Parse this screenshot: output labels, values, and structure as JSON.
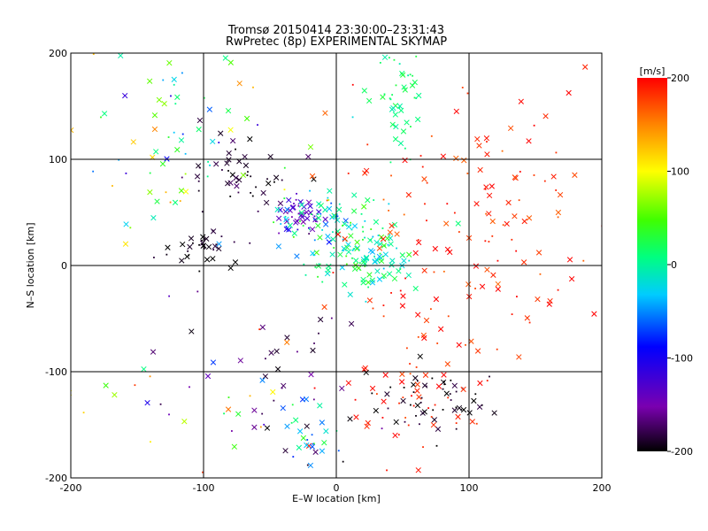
{
  "titles": {
    "line1": "Tromsø 20150414 23:30:00–23:31:43",
    "line2": "RwPretec (8p) EXPERIMENTAL SKYMAP"
  },
  "chart_data": {
    "type": "scatter",
    "xlabel": "E–W location [km]",
    "ylabel": "N–S location [km]",
    "xlim": [
      -200,
      200
    ],
    "ylim": [
      -200,
      200
    ],
    "xticks": [
      "-200",
      "-100",
      "0",
      "100",
      "200"
    ],
    "yticks": [
      "-200",
      "-100",
      "0",
      "100",
      "200"
    ],
    "grid": true,
    "colorbar": {
      "label": "[m/s]",
      "range": [
        -200,
        200
      ],
      "ticks": [
        "200",
        "100",
        "0",
        "-100",
        "-200"
      ],
      "colormap": "rainbow (black-purple-blue-cyan-green-yellow-red)"
    },
    "marker_types": [
      "x",
      "dot"
    ],
    "clusters": [
      {
        "cx": 48,
        "cy": 155,
        "sx": 10,
        "sy": 28,
        "n": 45,
        "v": [
          -10,
          30
        ]
      },
      {
        "cx": -28,
        "cy": 48,
        "sx": 8,
        "sy": 10,
        "n": 40,
        "v": [
          -160,
          -110
        ]
      },
      {
        "cx": -15,
        "cy": 45,
        "sx": 20,
        "sy": 18,
        "n": 40,
        "v": [
          -100,
          40
        ]
      },
      {
        "cx": 15,
        "cy": 20,
        "sx": 22,
        "sy": 18,
        "n": 100,
        "v": [
          -40,
          50
        ]
      },
      {
        "cx": 35,
        "cy": 0,
        "sx": 20,
        "sy": 15,
        "n": 40,
        "v": [
          -40,
          40
        ]
      },
      {
        "cx": -100,
        "cy": 18,
        "sx": 15,
        "sy": 10,
        "n": 35,
        "v": [
          -210,
          -180
        ]
      },
      {
        "cx": -70,
        "cy": 85,
        "sx": 25,
        "sy": 22,
        "n": 50,
        "v": [
          -210,
          -170
        ]
      },
      {
        "cx": 70,
        "cy": -130,
        "sx": 22,
        "sy": 18,
        "n": 55,
        "v": [
          -210,
          -180
        ]
      },
      {
        "cx": 50,
        "cy": -125,
        "sx": 30,
        "sy": 25,
        "n": 50,
        "v": [
          170,
          210
        ]
      },
      {
        "cx": 100,
        "cy": 60,
        "sx": 55,
        "sy": 55,
        "n": 110,
        "v": [
          160,
          210
        ]
      },
      {
        "cx": 80,
        "cy": -40,
        "sx": 40,
        "sy": 30,
        "n": 40,
        "v": [
          170,
          210
        ]
      },
      {
        "cx": -120,
        "cy": 120,
        "sx": 45,
        "sy": 45,
        "n": 80,
        "v": [
          -120,
          150
        ]
      },
      {
        "cx": -40,
        "cy": -100,
        "sx": 35,
        "sy": 40,
        "n": 35,
        "v": [
          -200,
          -150
        ]
      },
      {
        "cx": -20,
        "cy": -160,
        "sx": 15,
        "sy": 15,
        "n": 25,
        "v": [
          -80,
          40
        ]
      },
      {
        "cx": -110,
        "cy": -120,
        "sx": 50,
        "sy": 40,
        "n": 30,
        "v": [
          -200,
          200
        ]
      }
    ]
  }
}
